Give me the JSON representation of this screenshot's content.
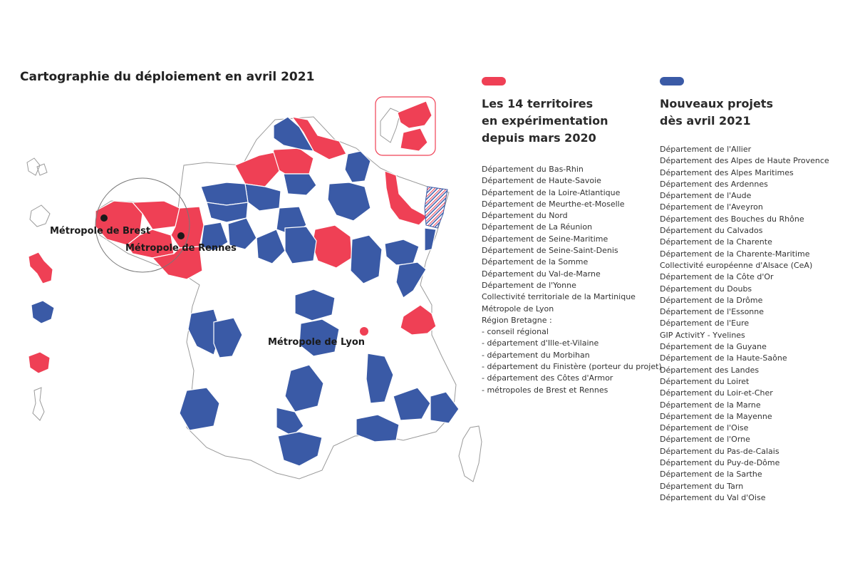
{
  "title": "Cartographie du déploiement en avril 2021",
  "colors": {
    "experimentation": "#ef4055",
    "nouveaux": "#3a5aa6",
    "outline": "#9a9a9a"
  },
  "map": {
    "metropoles": [
      {
        "label": "Métropole de Brest"
      },
      {
        "label": "Métropole de Rennes"
      },
      {
        "label": "Métropole de Lyon"
      }
    ]
  },
  "legend": {
    "experimentation": {
      "heading": [
        "Les 14 territoires",
        "en expérimentation",
        "depuis mars 2020"
      ],
      "items": [
        "Département du Bas-Rhin",
        "Département de Haute-Savoie",
        "Département de la Loire-Atlantique",
        "Département de Meurthe-et-Moselle",
        "Département du Nord",
        "Département de La Réunion",
        "Département de Seine-Maritime",
        "Département de Seine-Saint-Denis",
        "Département de la Somme",
        "Département du Val-de-Marne",
        "Département de l'Yonne",
        "Collectivité territoriale de la Martinique",
        "Métropole de Lyon",
        "Région Bretagne :",
        "- conseil régional",
        "- département d'Ille-et-Vilaine",
        "- département du Morbihan",
        "- département du Finistère (porteur du projet)",
        "- département des Côtes d'Armor",
        "- métropoles de Brest et Rennes"
      ]
    },
    "nouveaux": {
      "heading": [
        "Nouveaux projets",
        "dès avril 2021"
      ],
      "items": [
        "Département de l'Allier",
        "Département des Alpes de Haute Provence",
        "Département des Alpes Maritimes",
        "Département des Ardennes",
        "Département de l'Aude",
        "Département de l'Aveyron",
        "Département des Bouches du Rhône",
        "Département du Calvados",
        "Département de la Charente",
        "Département de la Charente-Maritime",
        "Collectivité européenne d'Alsace (CeA)",
        "Département de la Côte d'Or",
        "Département du Doubs",
        "Département de la Drôme",
        "Département de l'Essonne",
        "Département de l'Eure",
        "GIP ActivitY - Yvelines",
        "Département de la Guyane",
        "Département de la Haute-Saône",
        "Département des Landes",
        "Département du Loiret",
        "Département du Loir-et-Cher",
        "Département de la Marne",
        "Département de la Mayenne",
        "Département de l'Oise",
        "Département de l'Orne",
        "Département du Pas-de-Calais",
        "Département du Puy-de-Dôme",
        "Département de la Sarthe",
        "Département du Tarn",
        "Département du Val d'Oise"
      ]
    }
  }
}
